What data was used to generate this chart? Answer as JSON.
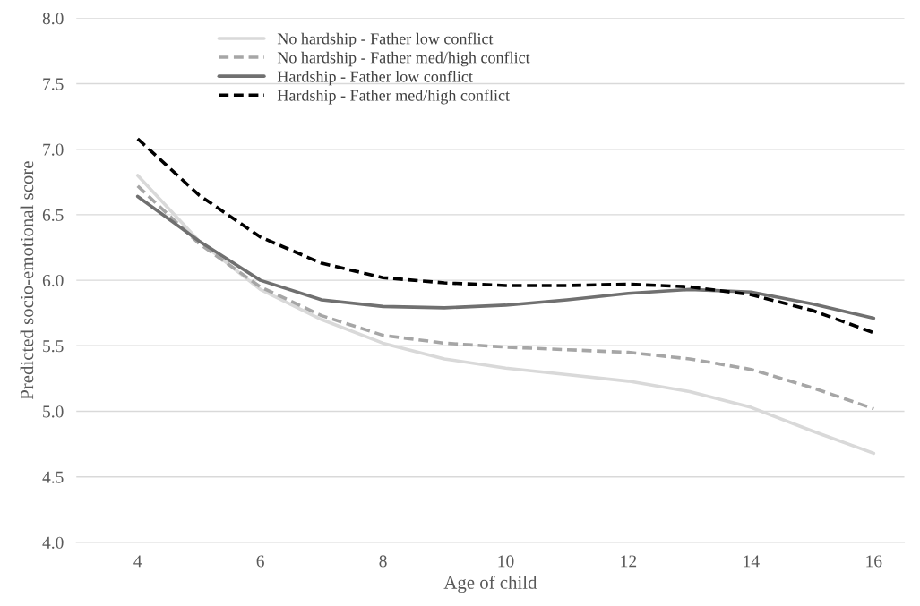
{
  "chart_data": {
    "type": "line",
    "xlabel": "Age of child",
    "ylabel": "Predicted socio-emotional score",
    "x": [
      4,
      5,
      6,
      7,
      8,
      9,
      10,
      11,
      12,
      13,
      14,
      15,
      16
    ],
    "series": [
      {
        "name": "No hardship - Father low conflict",
        "color": "#d9d9d9",
        "line_style": "solid",
        "values": [
          6.8,
          6.3,
          5.93,
          5.7,
          5.52,
          5.4,
          5.33,
          5.28,
          5.23,
          5.15,
          5.03,
          4.85,
          4.68
        ]
      },
      {
        "name": "No hardship - Father med/high conflict",
        "color": "#a6a6a6",
        "line_style": "dashed",
        "values": [
          6.72,
          6.28,
          5.95,
          5.73,
          5.58,
          5.52,
          5.49,
          5.47,
          5.45,
          5.4,
          5.32,
          5.18,
          5.02
        ]
      },
      {
        "name": "Hardship - Father low conflict",
        "color": "#707070",
        "line_style": "solid",
        "values": [
          6.64,
          6.3,
          6.0,
          5.85,
          5.8,
          5.79,
          5.81,
          5.85,
          5.9,
          5.93,
          5.91,
          5.82,
          5.71
        ]
      },
      {
        "name": "Hardship - Father med/high conflict",
        "color": "#000000",
        "line_style": "dashed",
        "values": [
          7.08,
          6.65,
          6.33,
          6.13,
          6.02,
          5.98,
          5.96,
          5.96,
          5.97,
          5.95,
          5.89,
          5.77,
          5.6
        ]
      }
    ],
    "xlim": [
      3,
      16.5
    ],
    "xticks": [
      4,
      6,
      8,
      10,
      12,
      14,
      16
    ],
    "ylim": [
      4.0,
      8.0
    ],
    "yticks": [
      {
        "value": 4.0,
        "label": "4.0"
      },
      {
        "value": 4.5,
        "label": "4.5"
      },
      {
        "value": 5.0,
        "label": "5.0"
      },
      {
        "value": 5.5,
        "label": "5.5"
      },
      {
        "value": 6.0,
        "label": "6.0"
      },
      {
        "value": 6.5,
        "label": "6.5"
      },
      {
        "value": 7.0,
        "label": "7.0"
      },
      {
        "value": 7.5,
        "label": "7.5"
      },
      {
        "value": 8.0,
        "label": "8.0"
      }
    ],
    "grid": "y",
    "legend": "top",
    "marker": "none"
  }
}
